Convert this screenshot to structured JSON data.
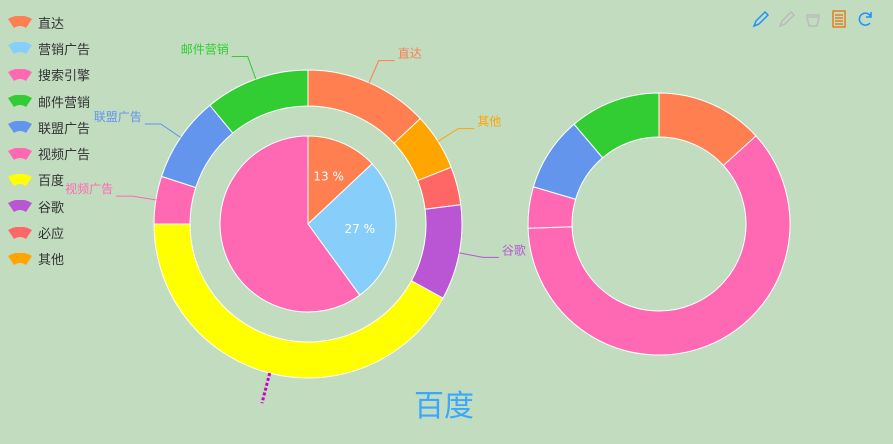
{
  "legend": {
    "items": [
      {
        "label": "直达",
        "color": "#ff7f50"
      },
      {
        "label": "营销广告",
        "color": "#87cefa"
      },
      {
        "label": "搜索引擎",
        "color": "#ff69b4"
      },
      {
        "label": "邮件营销",
        "color": "#32cd32"
      },
      {
        "label": "联盟广告",
        "color": "#6495ed"
      },
      {
        "label": "视频广告",
        "color": "#ff69b4"
      },
      {
        "label": "百度",
        "color": "#ffff00"
      },
      {
        "label": "谷歌",
        "color": "#ba55d3"
      },
      {
        "label": "必应",
        "color": "#ff6666"
      },
      {
        "label": "其他",
        "color": "#ffa500"
      }
    ]
  },
  "toolbox": {
    "icons": [
      "mark-icon",
      "mark-undo-icon",
      "mark-clear-icon",
      "data-view-icon",
      "restore-icon"
    ],
    "colors": [
      "#1e90ff",
      "#bbbbbb",
      "#bbbbbb",
      "#e67e22",
      "#1e90ff"
    ]
  },
  "chart_data": [
    {
      "type": "pie",
      "name": "inner",
      "categories": [
        "直达",
        "营销广告",
        "搜索引擎"
      ],
      "values": [
        13,
        27,
        60
      ],
      "labels": [
        "13 %",
        "27 %",
        ""
      ],
      "colors": [
        "#ff7f50",
        "#87cefa",
        "#ff69b4"
      ]
    },
    {
      "type": "pie",
      "name": "outer-left",
      "categories": [
        "直达",
        "其他",
        "必应",
        "谷歌",
        "百度",
        "视频广告",
        "联盟广告",
        "邮件营销"
      ],
      "values": [
        13,
        6,
        4,
        10,
        42,
        5,
        9,
        11
      ],
      "colors": [
        "#ff7f50",
        "#ffa500",
        "#ff6666",
        "#ba55d3",
        "#ffff00",
        "#ff69b4",
        "#6495ed",
        "#32cd32"
      ],
      "callouts": [
        "直达",
        "其他",
        "",
        "谷歌",
        "百度",
        "视频广告",
        "联盟广告",
        "邮件营销"
      ],
      "emphasis": "百度"
    },
    {
      "type": "pie",
      "name": "outer-right",
      "categories": [
        "直达",
        "搜索引擎",
        "视频广告",
        "联盟广告",
        "邮件营销"
      ],
      "values": [
        13,
        60,
        5,
        9,
        11
      ],
      "colors": [
        "#ff7f50",
        "#ff69b4",
        "#ff69b4",
        "#6495ed",
        "#32cd32"
      ]
    }
  ]
}
